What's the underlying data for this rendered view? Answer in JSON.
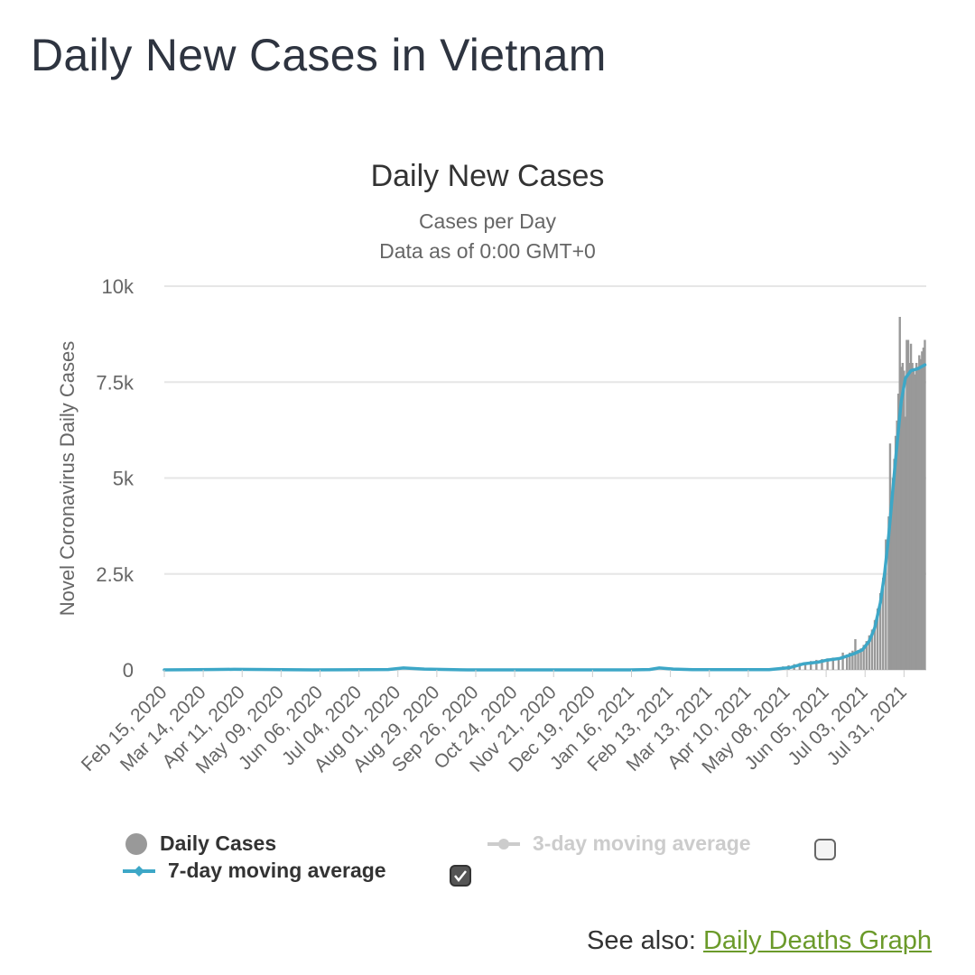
{
  "page": {
    "title": "Daily New Cases in Vietnam",
    "see_also_label": "See also:",
    "see_also_link": "Daily Deaths Graph"
  },
  "colors": {
    "bars": "#999999",
    "ma7": "#3da7c7",
    "ma3": "#cccccc",
    "grid": "#e6e6e6",
    "link": "#6b9a2a"
  },
  "chart_data": {
    "type": "bar",
    "title": "Daily New Cases",
    "subtitle": "Cases per Day",
    "subtitle2": "Data as of 0:00 GMT+0",
    "ylabel": "Novel Coronavirus Daily Cases",
    "ylim": [
      0,
      10000
    ],
    "y_ticks": [
      {
        "value": 0,
        "label": "0"
      },
      {
        "value": 2500,
        "label": "2.5k"
      },
      {
        "value": 5000,
        "label": "5k"
      },
      {
        "value": 7500,
        "label": "7.5k"
      },
      {
        "value": 10000,
        "label": "10k"
      }
    ],
    "x_range": [
      "2020-02-15",
      "2021-08-16"
    ],
    "x_tick_labels": [
      "Feb 15, 2020",
      "Mar 14, 2020",
      "Apr 11, 2020",
      "May 09, 2020",
      "Jun 06, 2020",
      "Jul 04, 2020",
      "Aug 01, 2020",
      "Aug 29, 2020",
      "Sep 26, 2020",
      "Oct 24, 2020",
      "Nov 21, 2020",
      "Dec 19, 2020",
      "Jan 16, 2021",
      "Feb 13, 2021",
      "Mar 13, 2021",
      "Apr 10, 2021",
      "May 08, 2021",
      "Jun 05, 2021",
      "Jul 03, 2021",
      "Jul 31, 2021"
    ],
    "grid": true,
    "legend_position": "bottom",
    "legend": [
      {
        "name": "Daily Cases",
        "enabled": true
      },
      {
        "name": "7-day moving average",
        "enabled": true
      },
      {
        "name": "3-day moving average",
        "enabled": false
      }
    ],
    "series": [
      {
        "name": "Daily Cases",
        "kind": "bar",
        "points": [
          [
            "2021-04-27",
            40
          ],
          [
            "2021-05-01",
            60
          ],
          [
            "2021-05-05",
            90
          ],
          [
            "2021-05-09",
            120
          ],
          [
            "2021-05-13",
            150
          ],
          [
            "2021-05-17",
            180
          ],
          [
            "2021-05-21",
            200
          ],
          [
            "2021-05-25",
            230
          ],
          [
            "2021-05-29",
            260
          ],
          [
            "2021-06-02",
            280
          ],
          [
            "2021-06-06",
            300
          ],
          [
            "2021-06-10",
            320
          ],
          [
            "2021-06-14",
            330
          ],
          [
            "2021-06-17",
            450
          ],
          [
            "2021-06-20",
            400
          ],
          [
            "2021-06-22",
            450
          ],
          [
            "2021-06-24",
            500
          ],
          [
            "2021-06-26",
            800
          ],
          [
            "2021-06-28",
            520
          ],
          [
            "2021-06-30",
            560
          ],
          [
            "2021-07-02",
            650
          ],
          [
            "2021-07-04",
            750
          ],
          [
            "2021-07-06",
            900
          ],
          [
            "2021-07-08",
            1050
          ],
          [
            "2021-07-10",
            1300
          ],
          [
            "2021-07-12",
            1600
          ],
          [
            "2021-07-14",
            2000
          ],
          [
            "2021-07-16",
            2400
          ],
          [
            "2021-07-18",
            3400
          ],
          [
            "2021-07-20",
            4000
          ],
          [
            "2021-07-21",
            5900
          ],
          [
            "2021-07-22",
            4300
          ],
          [
            "2021-07-23",
            5000
          ],
          [
            "2021-07-24",
            5500
          ],
          [
            "2021-07-25",
            6100
          ],
          [
            "2021-07-26",
            6500
          ],
          [
            "2021-07-27",
            7200
          ],
          [
            "2021-07-28",
            9200
          ],
          [
            "2021-07-29",
            7900
          ],
          [
            "2021-07-30",
            8000
          ],
          [
            "2021-07-31",
            7800
          ],
          [
            "2021-08-01",
            6600
          ],
          [
            "2021-08-02",
            8600
          ],
          [
            "2021-08-03",
            8600
          ],
          [
            "2021-08-04",
            8000
          ],
          [
            "2021-08-05",
            8500
          ],
          [
            "2021-08-06",
            8000
          ],
          [
            "2021-08-07",
            7800
          ],
          [
            "2021-08-08",
            7700
          ],
          [
            "2021-08-09",
            8000
          ],
          [
            "2021-08-10",
            7900
          ],
          [
            "2021-08-11",
            8200
          ],
          [
            "2021-08-12",
            8100
          ],
          [
            "2021-08-13",
            8300
          ],
          [
            "2021-08-14",
            8400
          ],
          [
            "2021-08-15",
            8600
          ]
        ]
      },
      {
        "name": "7-day moving average",
        "kind": "line",
        "points": [
          [
            "2020-02-15",
            0
          ],
          [
            "2020-03-20",
            10
          ],
          [
            "2020-04-05",
            15
          ],
          [
            "2020-06-01",
            0
          ],
          [
            "2020-07-25",
            10
          ],
          [
            "2020-08-05",
            50
          ],
          [
            "2020-08-20",
            20
          ],
          [
            "2020-09-20",
            0
          ],
          [
            "2021-01-15",
            0
          ],
          [
            "2021-01-29",
            10
          ],
          [
            "2021-02-05",
            50
          ],
          [
            "2021-02-15",
            20
          ],
          [
            "2021-03-01",
            5
          ],
          [
            "2021-04-25",
            5
          ],
          [
            "2021-05-10",
            60
          ],
          [
            "2021-05-20",
            160
          ],
          [
            "2021-05-30",
            200
          ],
          [
            "2021-06-05",
            250
          ],
          [
            "2021-06-15",
            300
          ],
          [
            "2021-06-25",
            420
          ],
          [
            "2021-07-01",
            520
          ],
          [
            "2021-07-06",
            750
          ],
          [
            "2021-07-10",
            1100
          ],
          [
            "2021-07-14",
            1750
          ],
          [
            "2021-07-17",
            2500
          ],
          [
            "2021-07-20",
            3500
          ],
          [
            "2021-07-23",
            4700
          ],
          [
            "2021-07-26",
            5900
          ],
          [
            "2021-07-29",
            7000
          ],
          [
            "2021-08-01",
            7600
          ],
          [
            "2021-08-05",
            7800
          ],
          [
            "2021-08-10",
            7850
          ],
          [
            "2021-08-15",
            7950
          ]
        ]
      }
    ]
  }
}
